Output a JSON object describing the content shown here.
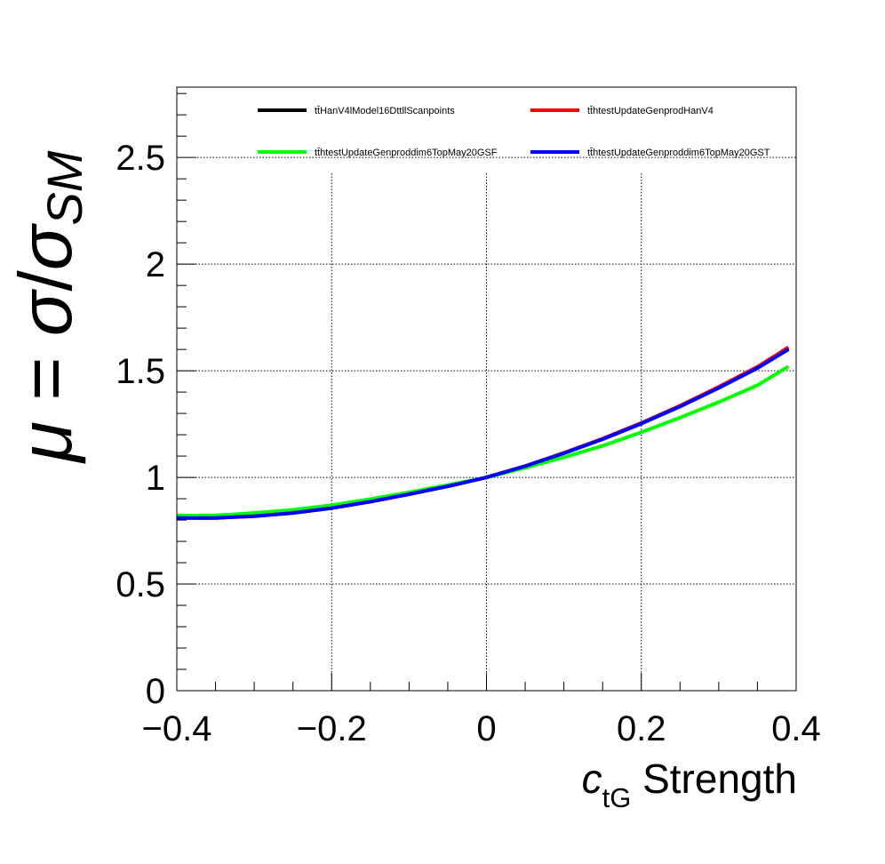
{
  "chart_data": {
    "type": "line",
    "title": "",
    "xlabel": {
      "symbol": "c",
      "subscript": "tG",
      "text": " Strength"
    },
    "ylabel": {
      "mu": "μ",
      "equals": " = ",
      "sigma": "σ",
      "slash": "/",
      "sigma2": "σ",
      "subscript": "SM"
    },
    "xlim": [
      -0.4,
      0.4
    ],
    "ylim": [
      0,
      2.83
    ],
    "x_ticks": [
      -0.4,
      -0.2,
      0,
      0.2,
      0.4
    ],
    "x_tick_labels": [
      "−0.4",
      "−0.2",
      "0",
      "0.2",
      "0.4"
    ],
    "y_ticks": [
      0,
      0.5,
      1,
      1.5,
      2,
      2.5
    ],
    "y_tick_labels": [
      "0",
      "0.5",
      "1",
      "1.5",
      "2",
      "2.5"
    ],
    "grid": true,
    "legend_position": "top",
    "x": [
      -0.4,
      -0.35,
      -0.3,
      -0.25,
      -0.2,
      -0.15,
      -0.1,
      -0.05,
      0,
      0.05,
      0.1,
      0.15,
      0.2,
      0.25,
      0.3,
      0.35,
      0.39
    ],
    "series": [
      {
        "name": "tt̄HanV4lModel16DttllScanpoints",
        "color": "#000000",
        "values": [
          0.82,
          0.82,
          0.823,
          0.838,
          0.859,
          0.889,
          0.922,
          0.958,
          1.0,
          1.053,
          1.115,
          1.181,
          1.255,
          1.336,
          1.424,
          1.518,
          1.605
        ]
      },
      {
        "name": "tt̄htestUpdateGenprodHanV4",
        "color": "#ff0000",
        "values": [
          0.81,
          0.81,
          0.818,
          0.833,
          0.856,
          0.886,
          0.921,
          0.958,
          1.0,
          1.053,
          1.115,
          1.181,
          1.255,
          1.336,
          1.424,
          1.518,
          1.61
        ]
      },
      {
        "name": "tt̄htestUpdateGenproddim6TopMay20GSF",
        "color": "#00ff00",
        "values": [
          0.82,
          0.822,
          0.833,
          0.848,
          0.87,
          0.898,
          0.93,
          0.964,
          1.0,
          1.045,
          1.094,
          1.148,
          1.212,
          1.28,
          1.353,
          1.432,
          1.52
        ]
      },
      {
        "name": "tt̄htestUpdateGenproddim6TopMay20GST",
        "color": "#0000ff",
        "values": [
          0.81,
          0.81,
          0.818,
          0.833,
          0.856,
          0.886,
          0.921,
          0.958,
          1.0,
          1.053,
          1.113,
          1.179,
          1.252,
          1.332,
          1.419,
          1.512,
          1.6
        ]
      }
    ]
  }
}
